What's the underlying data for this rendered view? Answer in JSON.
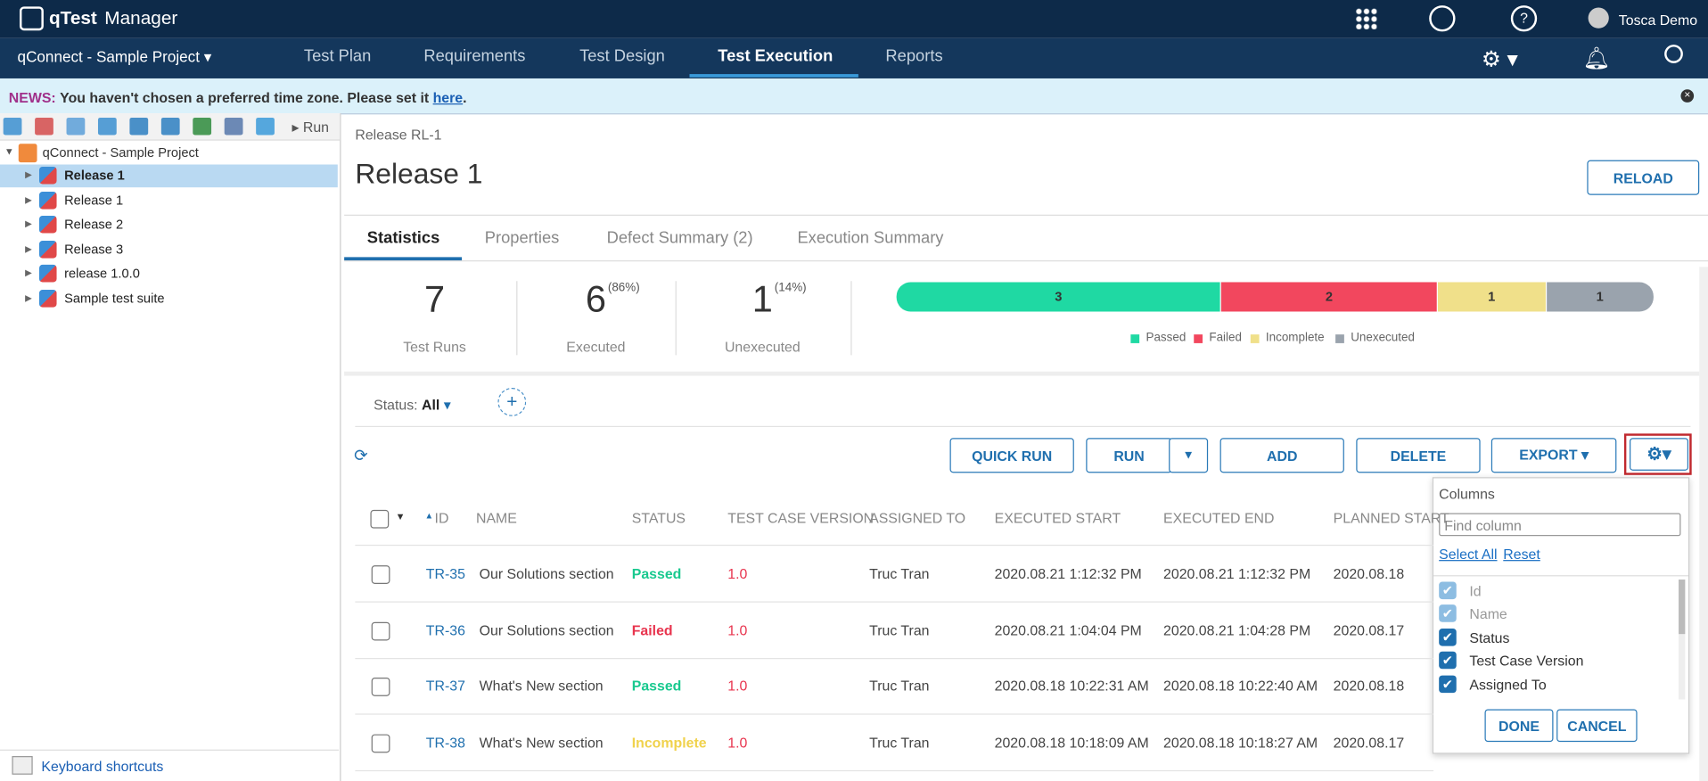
{
  "header": {
    "brand": "qTest",
    "brand_suffix": "Manager",
    "user": "Tosca Demo"
  },
  "nav": {
    "project": "qConnect - Sample Project",
    "tabs": [
      "Test Plan",
      "Requirements",
      "Test Design",
      "Test Execution",
      "Reports"
    ],
    "active_tab": 3
  },
  "news": {
    "label": "NEWS:",
    "text": "You haven't chosen a preferred time zone. Please set it",
    "link": "here",
    "end": "."
  },
  "toolbar": {
    "run": "Run"
  },
  "tree": {
    "root": "qConnect - Sample Project",
    "items": [
      "Release 1",
      "Release 1",
      "Release 2",
      "Release 3",
      "release 1.0.0",
      "Sample test suite"
    ],
    "selected": 0
  },
  "footer": {
    "shortcuts": "Keyboard shortcuts"
  },
  "detail": {
    "breadcrumb": "Release RL-1",
    "title": "Release 1",
    "reload": "RELOAD",
    "tabs": [
      "Statistics",
      "Properties",
      "Defect Summary (2)",
      "Execution Summary"
    ],
    "active_tab": 0
  },
  "stats": {
    "tiles": [
      {
        "value": "7",
        "label": "Test Runs"
      },
      {
        "value": "6",
        "percent": "(86%)",
        "label": "Executed"
      },
      {
        "value": "1",
        "percent": "(14%)",
        "label": "Unexecuted"
      }
    ],
    "bar": [
      {
        "name": "Passed",
        "value": 3,
        "color": "#1fd9a3"
      },
      {
        "name": "Failed",
        "value": 2,
        "color": "#f2475e"
      },
      {
        "name": "Incomplete",
        "value": 1,
        "color": "#f0e08a"
      },
      {
        "name": "Unexecuted",
        "value": 1,
        "color": "#9aa3ad"
      }
    ]
  },
  "filter": {
    "label": "Status:",
    "value": "All"
  },
  "actions": [
    "QUICK RUN",
    "RUN",
    "ADD",
    "DELETE",
    "EXPORT"
  ],
  "table": {
    "columns": [
      "ID",
      "NAME",
      "STATUS",
      "TEST CASE VERSION",
      "ASSIGNED TO",
      "EXECUTED START",
      "EXECUTED END",
      "PLANNED START"
    ],
    "status_colors": {
      "Passed": "#19c98f",
      "Failed": "#e8344e",
      "Incomplete": "#f0d24c"
    },
    "rows": [
      [
        "TR-35",
        "Our Solutions section",
        "Passed",
        "1.0",
        "Truc Tran",
        "2020.08.21 1:12:32 PM",
        "2020.08.21 1:12:32 PM",
        "2020.08.18"
      ],
      [
        "TR-36",
        "Our Solutions section",
        "Failed",
        "1.0",
        "Truc Tran",
        "2020.08.21 1:04:04 PM",
        "2020.08.21 1:04:28 PM",
        "2020.08.17"
      ],
      [
        "TR-37",
        "What's New section",
        "Passed",
        "1.0",
        "Truc Tran",
        "2020.08.18 10:22:31 AM",
        "2020.08.18 10:22:40 AM",
        "2020.08.18"
      ],
      [
        "TR-38",
        "What's New section",
        "Incomplete",
        "1.0",
        "Truc Tran",
        "2020.08.18 10:18:09 AM",
        "2020.08.18 10:18:27 AM",
        "2020.08.17"
      ]
    ]
  },
  "columns_panel": {
    "title": "Columns",
    "placeholder": "Find column",
    "select_all": "Select All",
    "reset": "Reset",
    "items": [
      {
        "label": "Id",
        "checked": true,
        "disabled": true
      },
      {
        "label": "Name",
        "checked": true,
        "disabled": true
      },
      {
        "label": "Status",
        "checked": true,
        "disabled": false
      },
      {
        "label": "Test Case Version",
        "checked": true,
        "disabled": false
      },
      {
        "label": "Assigned To",
        "checked": true,
        "disabled": false
      }
    ],
    "done": "DONE",
    "cancel": "CANCEL"
  }
}
